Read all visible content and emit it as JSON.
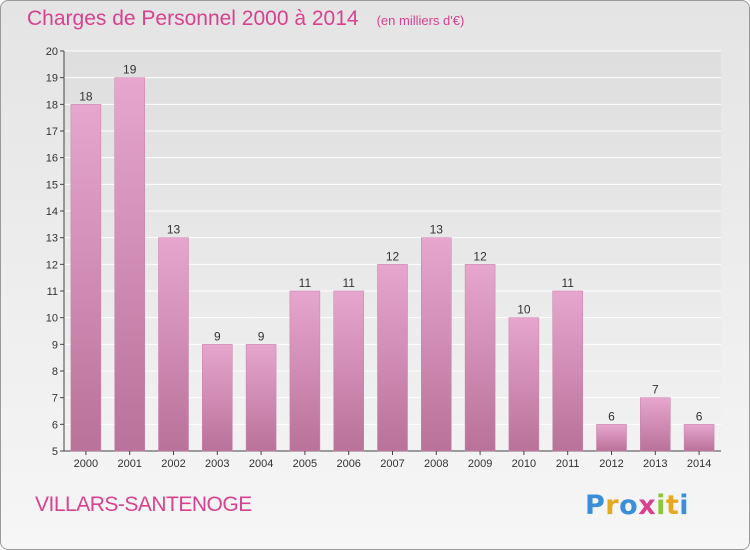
{
  "header": {
    "title": "Charges de Personnel 2000 à 2014",
    "subtitle": "(en milliers d'€)"
  },
  "footer": {
    "commune": "VILLARS-SANTENOGE",
    "logo_letters": [
      "P",
      "r",
      "o",
      "x",
      "i",
      "t",
      "i"
    ],
    "logo_colors": [
      "#3a8fd8",
      "#e6a81e",
      "#3a8fd8",
      "#d8418f",
      "#8cc63f",
      "#e6a81e",
      "#3a8fd8"
    ]
  },
  "chart_data": {
    "type": "bar",
    "categories": [
      "2000",
      "2001",
      "2002",
      "2003",
      "2004",
      "2005",
      "2006",
      "2007",
      "2008",
      "2009",
      "2010",
      "2011",
      "2012",
      "2013",
      "2014"
    ],
    "values": [
      18,
      19,
      13,
      9,
      9,
      11,
      11,
      12,
      13,
      12,
      10,
      11,
      6,
      7,
      6
    ],
    "ylim": [
      5,
      20
    ],
    "yticks": [
      5,
      6,
      7,
      8,
      9,
      10,
      11,
      12,
      13,
      14,
      15,
      16,
      17,
      18,
      19,
      20
    ],
    "grid": true,
    "bar_color": "#d98cb7",
    "text_color": "#d8418f"
  }
}
